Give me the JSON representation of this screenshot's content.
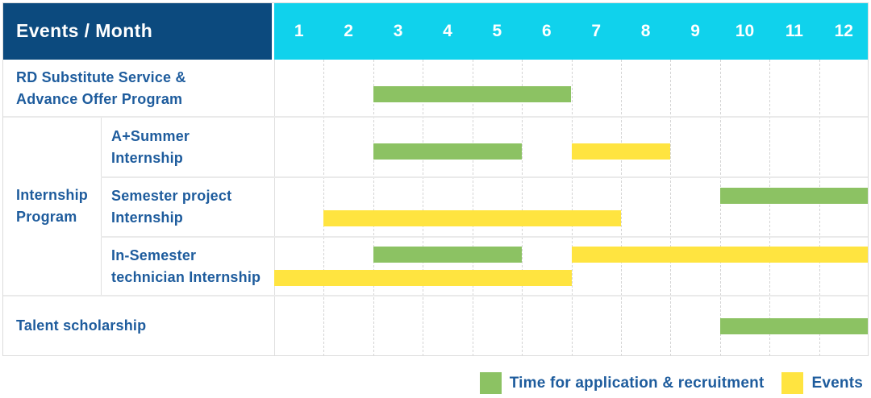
{
  "colors": {
    "navy": "#0c4a7e",
    "cyan": "#10d2ec",
    "green": "#8cc263",
    "yellow": "#ffe440",
    "labelblue": "#1e5c9d"
  },
  "chart_data": {
    "type": "gantt",
    "corner_label": "Events / Month",
    "months": [
      "1",
      "2",
      "3",
      "4",
      "5",
      "6",
      "7",
      "8",
      "9",
      "10",
      "11",
      "12"
    ],
    "x_range": [
      1,
      12
    ],
    "group_cell": {
      "label": "Internship Program",
      "label_lines": [
        "Internship",
        "Program"
      ]
    },
    "rows": [
      {
        "id": "rd-substitute-service",
        "group": null,
        "label": "RD Substitute Service & Advance Offer Program",
        "label_lines": [
          "RD Substitute Service &",
          "Advance Offer Program"
        ],
        "bars": [
          {
            "type": "recruitment",
            "start_month": 3,
            "end_month": 6,
            "line": 0
          }
        ]
      },
      {
        "id": "a-plus-summer-internship",
        "group": "Internship Program",
        "label": "A+Summer Internship",
        "label_lines": [
          "A+Summer",
          "Internship"
        ],
        "bars": [
          {
            "type": "recruitment",
            "start_month": 3,
            "end_month": 5,
            "line": 0
          },
          {
            "type": "event",
            "start_month": 7,
            "end_month": 8,
            "line": 0
          }
        ]
      },
      {
        "id": "semester-project-internship",
        "group": "Internship Program",
        "label": "Semester project Internship",
        "label_lines": [
          "Semester project",
          "Internship"
        ],
        "bars": [
          {
            "type": "recruitment",
            "start_month": 10,
            "end_month": 12,
            "line": 0
          },
          {
            "type": "event",
            "start_month": 2,
            "end_month": 7,
            "line": 1
          }
        ]
      },
      {
        "id": "in-semester-technician-internship",
        "group": "Internship Program",
        "label": "In-Semester technician Internship",
        "label_lines": [
          "In-Semester",
          "technician Internship"
        ],
        "bars": [
          {
            "type": "recruitment",
            "start_month": 3,
            "end_month": 5,
            "line": 0
          },
          {
            "type": "event",
            "start_month": 7,
            "end_month": 12,
            "line": 0
          },
          {
            "type": "event",
            "start_month": 1,
            "end_month": 6,
            "line": 1
          }
        ]
      },
      {
        "id": "talent-scholarship",
        "group": null,
        "label": "Talent scholarship",
        "label_lines": [
          "Talent scholarship"
        ],
        "bars": [
          {
            "type": "recruitment",
            "start_month": 10,
            "end_month": 12,
            "line": 0
          }
        ]
      }
    ],
    "legend": [
      {
        "type": "recruitment",
        "label": "Time for application & recruitment"
      },
      {
        "type": "event",
        "label": "Events"
      }
    ]
  }
}
